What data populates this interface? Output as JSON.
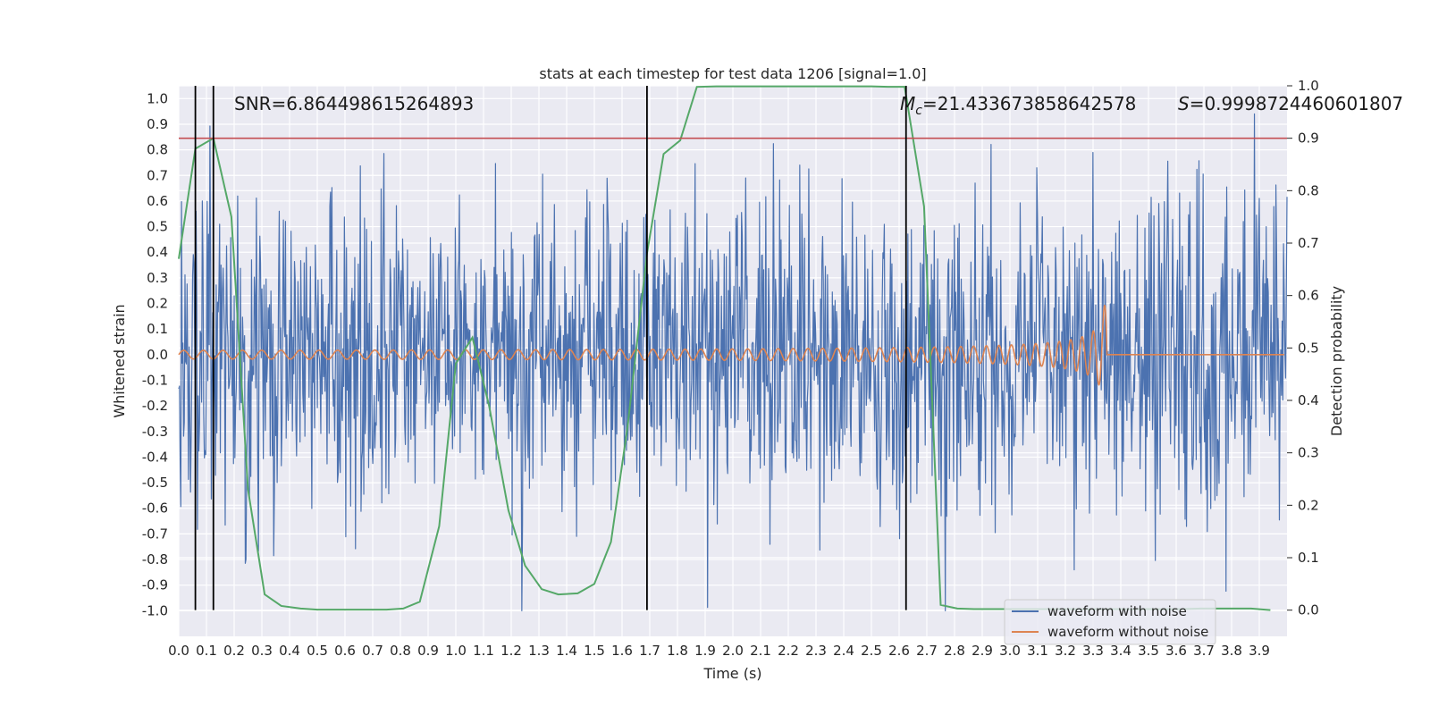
{
  "chart_data": {
    "type": "line",
    "title": "stats at each timestep for test data 1206 [signal=1.0]",
    "xlabel": "Time (s)",
    "ylabel": "Whitened strain",
    "y2label": "Detection probability",
    "xlim": [
      0.0,
      4.0
    ],
    "ylim": [
      -1.1,
      1.05
    ],
    "y2lim": [
      -0.05,
      1.0
    ],
    "xticks": [
      "0.0",
      "0.1",
      "0.2",
      "0.3",
      "0.4",
      "0.5",
      "0.6",
      "0.7",
      "0.8",
      "0.9",
      "1.0",
      "1.1",
      "1.2",
      "1.3",
      "1.4",
      "1.5",
      "1.6",
      "1.7",
      "1.8",
      "1.9",
      "2.0",
      "2.1",
      "2.2",
      "2.3",
      "2.4",
      "2.5",
      "2.6",
      "2.7",
      "2.8",
      "2.9",
      "3.0",
      "3.1",
      "3.2",
      "3.3",
      "3.4",
      "3.5",
      "3.6",
      "3.7",
      "3.8",
      "3.9"
    ],
    "yticks": [
      "1.0",
      "0.9",
      "0.8",
      "0.7",
      "0.6",
      "0.5",
      "0.4",
      "0.3",
      "0.2",
      "0.1",
      "0.0",
      "-0.1",
      "-0.2",
      "-0.3",
      "-0.4",
      "-0.5",
      "-0.6",
      "-0.7",
      "-0.8",
      "-0.9",
      "-1.0"
    ],
    "y2ticks": [
      "1.0",
      "0.9",
      "0.8",
      "0.7",
      "0.6",
      "0.5",
      "0.4",
      "0.3",
      "0.2",
      "0.1",
      "0.0"
    ],
    "grid": true,
    "legend": "bottom-right",
    "annotations": {
      "snr": "SNR=6.864498615264893",
      "mc_symbol": "M",
      "mc_sub": "c",
      "mc_value": "=21.433673858642578",
      "s_symbol": "S",
      "s_value": "=0.9998724460601807"
    },
    "threshold": {
      "y2": 0.9,
      "color": "#c44e52"
    },
    "vertical_lines": {
      "x": [
        0.06,
        0.125,
        1.69,
        2.625
      ],
      "color": "#000000"
    },
    "series": [
      {
        "name": "waveform with noise",
        "axis": "left",
        "color": "#4c72b0",
        "sample_count": 1600,
        "amplitude_range": [
          -1.0,
          0.94
        ]
      },
      {
        "name": "waveform without noise",
        "axis": "left",
        "color": "#dd8452",
        "merger_time": 3.35,
        "peak_amplitude": 0.36
      },
      {
        "name": "",
        "axis": "right",
        "color": "#55a868",
        "x": [
          0.0,
          0.06,
          0.125,
          0.19,
          0.25,
          0.31,
          0.37,
          0.44,
          0.5,
          0.56,
          0.62,
          0.69,
          0.75,
          0.81,
          0.87,
          0.94,
          1.0,
          1.06,
          1.12,
          1.19,
          1.25,
          1.31,
          1.37,
          1.44,
          1.5,
          1.56,
          1.62,
          1.69,
          1.75,
          1.81,
          1.87,
          1.94,
          2.0,
          2.06,
          2.12,
          2.19,
          2.25,
          2.31,
          2.37,
          2.44,
          2.5,
          2.56,
          2.62,
          2.69,
          2.75,
          2.81,
          2.87,
          2.94,
          3.0,
          3.06,
          3.12,
          3.19,
          3.25,
          3.31,
          3.37,
          3.44,
          3.5,
          3.56,
          3.62,
          3.69,
          3.75,
          3.81,
          3.87,
          3.94
        ],
        "values": [
          0.67,
          0.88,
          0.9,
          0.75,
          0.23,
          0.03,
          0.008,
          0.003,
          0.001,
          0.001,
          0.001,
          0.001,
          0.001,
          0.003,
          0.016,
          0.16,
          0.47,
          0.52,
          0.39,
          0.19,
          0.085,
          0.04,
          0.03,
          0.032,
          0.05,
          0.13,
          0.35,
          0.68,
          0.87,
          0.896,
          0.998,
          0.999,
          0.999,
          0.999,
          0.999,
          0.999,
          0.999,
          0.999,
          0.999,
          0.999,
          0.999,
          0.998,
          0.998,
          0.77,
          0.01,
          0.003,
          0.002,
          0.002,
          0.002,
          0.002,
          0.002,
          0.002,
          0.002,
          0.002,
          0.002,
          0.002,
          0.002,
          0.002,
          0.002,
          0.003,
          0.003,
          0.003,
          0.003,
          0.0
        ]
      }
    ]
  }
}
